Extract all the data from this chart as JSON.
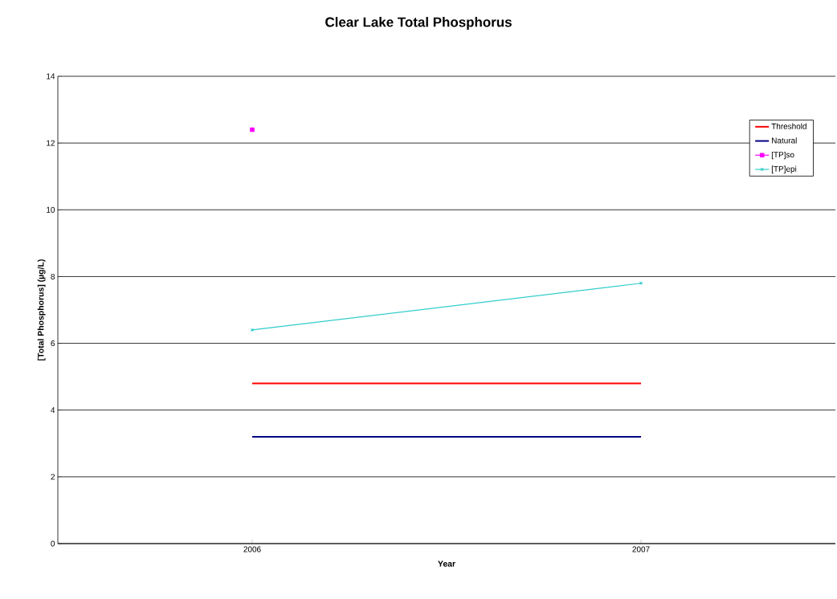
{
  "chart_data": {
    "type": "line",
    "title": "Clear Lake Total Phosphorus",
    "xlabel": "Year",
    "ylabel": "[Total Phosphorus] (µg/L)",
    "x": [
      2006,
      2007
    ],
    "xlim": [
      2005.5,
      2007.5
    ],
    "xticks": [
      2006,
      2007
    ],
    "series": [
      {
        "name": "Threshold",
        "color": "#ff0000",
        "values": [
          4.8,
          4.8
        ],
        "marker": "none"
      },
      {
        "name": "Natural",
        "color": "#000080",
        "values": [
          3.2,
          3.2
        ],
        "marker": "none"
      },
      {
        "name": "[TP]so",
        "color": "#ff00ff",
        "values": [
          12.4,
          null
        ],
        "marker": "square"
      },
      {
        "name": "[TP]epi",
        "color": "#33cccc",
        "values": [
          6.4,
          7.8
        ],
        "marker": "cross"
      }
    ],
    "ylim": [
      0,
      14
    ],
    "yticks": [
      0,
      2,
      4,
      6,
      8,
      10,
      12,
      14
    ],
    "grid": "y",
    "legend": "top right",
    "line_style": "solid"
  }
}
